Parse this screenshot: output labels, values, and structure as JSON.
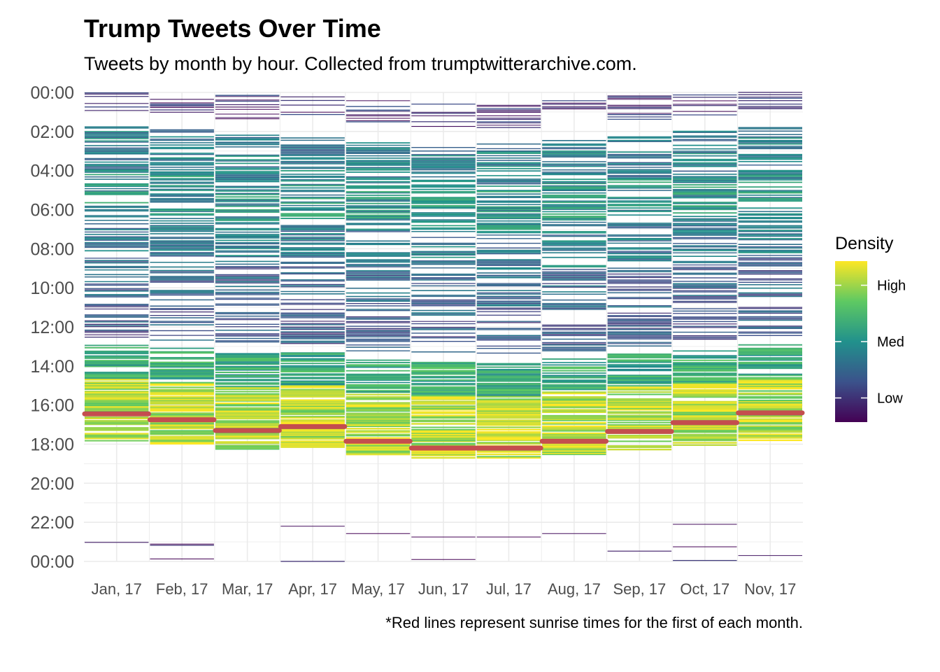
{
  "chart_data": {
    "type": "heatmap",
    "title": "Trump Tweets Over Time",
    "subtitle": "Tweets by month by hour. Collected from trumptwitterarchive.com.",
    "caption": "*Red lines represent sunrise times for the first of each month.",
    "xlabel": "",
    "ylabel": "",
    "categories": [
      "Jan, 17",
      "Feb, 17",
      "Mar, 17",
      "Apr, 17",
      "May, 17",
      "Jun, 17",
      "Jul, 17",
      "Aug, 17",
      "Sep, 17",
      "Oct, 17",
      "Nov, 17"
    ],
    "y_ticks": [
      "00:00",
      "02:00",
      "04:00",
      "06:00",
      "08:00",
      "10:00",
      "12:00",
      "14:00",
      "16:00",
      "18:00",
      "20:00",
      "22:00",
      "00:00"
    ],
    "y_tick_hours": [
      24,
      22,
      20,
      18,
      16,
      14,
      12,
      10,
      8,
      6,
      4,
      2,
      0
    ],
    "ylim": [
      0,
      24
    ],
    "y_reversed": true,
    "grid": true,
    "legend": {
      "title": "Density",
      "labels": [
        "High",
        "Med",
        "Low"
      ],
      "label_values": [
        0.85,
        0.5,
        0.15
      ],
      "placement": "right"
    },
    "colors": {
      "viridis": [
        "#440154",
        "#3b528b",
        "#21918c",
        "#5ec962",
        "#fde725"
      ],
      "sunrise": "#c44e4e",
      "grid": "#ebebeb"
    },
    "sunrise_hours": [
      7.55,
      7.25,
      6.7,
      6.9,
      6.15,
      5.8,
      5.8,
      6.15,
      6.65,
      7.1,
      7.6
    ],
    "activity": [
      {
        "start": 0.0,
        "end": 0.05,
        "density": 0.05
      },
      {
        "start": 0.7,
        "end": 0.8,
        "density": 0.05
      },
      {
        "start": 1.85,
        "end": 1.9,
        "density": 0.04
      },
      {
        "start": 5.9,
        "end": 9.1,
        "density": 0.88
      },
      {
        "start": 9.1,
        "end": 10.8,
        "density": 0.6
      },
      {
        "start": 11.2,
        "end": 13.0,
        "density": 0.25
      },
      {
        "start": 13.2,
        "end": 15.4,
        "density": 0.3
      },
      {
        "start": 15.5,
        "end": 17.5,
        "density": 0.4
      },
      {
        "start": 17.6,
        "end": 19.8,
        "density": 0.5
      },
      {
        "start": 19.8,
        "end": 22.0,
        "density": 0.42
      },
      {
        "start": 22.8,
        "end": 24.0,
        "density": 0.12
      }
    ]
  }
}
